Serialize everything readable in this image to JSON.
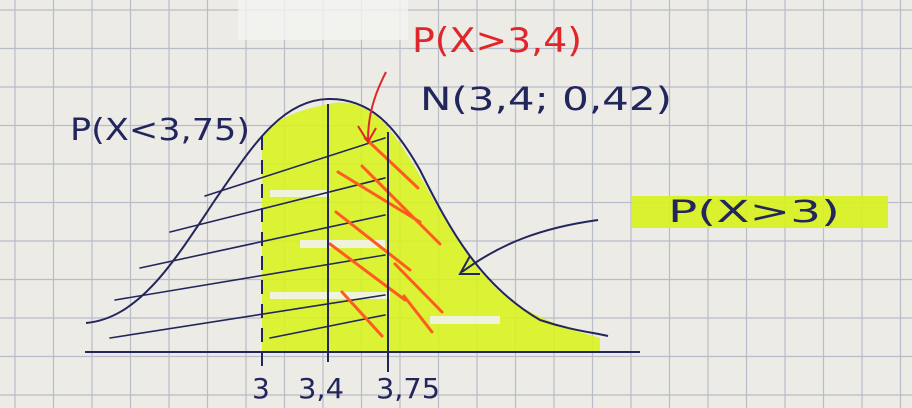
{
  "labels": {
    "p_less_375": "P(X<3,75)",
    "p_greater_34": "P(X>3,4)",
    "distribution": "N(3,4; 0,42)",
    "p_greater_3": "P(X>3)"
  },
  "ticks": [
    "3",
    "3,4",
    "3,75"
  ],
  "colors": {
    "paper": "#ecebe6",
    "grid": "#b9bcc9",
    "ink": "#23265c",
    "red_ink": "#e0262b",
    "highlighter": "#d8f21c",
    "orange_stroke": "#ff5a1f"
  }
}
